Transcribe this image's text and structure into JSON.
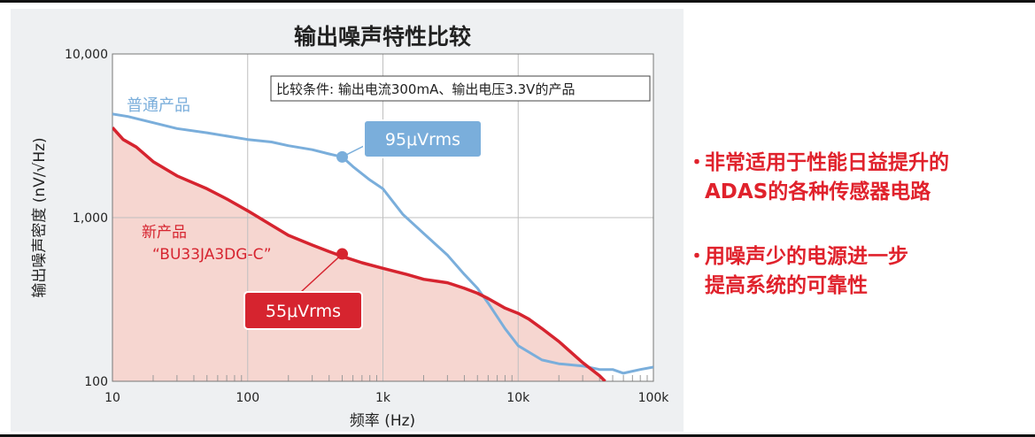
{
  "chart_data": {
    "type": "line",
    "title": "输出噪声特性比较",
    "xlabel": "频率 (Hz)",
    "ylabel": "输出噪声密度 (nV/√Hz)",
    "x_scale": "log",
    "y_scale": "log",
    "xlim": [
      10,
      100000
    ],
    "ylim": [
      100,
      10000
    ],
    "x_ticks": [
      {
        "value": 10,
        "label": "10"
      },
      {
        "value": 100,
        "label": "100"
      },
      {
        "value": 1000,
        "label": "1k"
      },
      {
        "value": 10000,
        "label": "10k"
      },
      {
        "value": 100000,
        "label": "100k"
      }
    ],
    "y_ticks": [
      {
        "value": 100,
        "label": "100"
      },
      {
        "value": 1000,
        "label": "1,000"
      },
      {
        "value": 10000,
        "label": "10,000"
      }
    ],
    "grid": true,
    "annotation_box": "比较条件: 输出电流300mA、输出电压3.3V的产品",
    "series": [
      {
        "name": "普通产品",
        "color": "#7aaedb",
        "x": [
          10,
          13,
          20,
          30,
          50,
          100,
          150,
          200,
          300,
          400,
          500,
          600,
          800,
          1000,
          1400,
          2000,
          3000,
          4000,
          5000,
          6000,
          8000,
          10000,
          15000,
          20000,
          30000,
          40000,
          50000,
          60000,
          80000,
          100000
        ],
        "y": [
          4300,
          4150,
          3800,
          3500,
          3300,
          3000,
          2900,
          2750,
          2600,
          2450,
          2350,
          2050,
          1700,
          1500,
          1050,
          800,
          590,
          450,
          370,
          300,
          210,
          165,
          135,
          128,
          124,
          118,
          118,
          112,
          118,
          122
        ]
      },
      {
        "name": "新产品\n“BU33JA3DG-C”",
        "color": "#d6242f",
        "fill": "#f6d6d0",
        "x": [
          10,
          12,
          15,
          20,
          30,
          50,
          70,
          100,
          150,
          200,
          300,
          400,
          500,
          700,
          1000,
          1500,
          2000,
          3000,
          4000,
          5000,
          6000,
          8000,
          10000,
          12000,
          15000,
          20000,
          30000,
          40000,
          44000
        ],
        "y": [
          3550,
          3000,
          2700,
          2200,
          1800,
          1500,
          1300,
          1100,
          900,
          780,
          680,
          620,
          580,
          530,
          490,
          450,
          420,
          400,
          370,
          345,
          320,
          280,
          260,
          240,
          210,
          175,
          130,
          108,
          100
        ]
      }
    ],
    "callouts": [
      {
        "series": 0,
        "x": 500,
        "y": 2350,
        "label": "95μVrms",
        "color": "#7aaedb"
      },
      {
        "series": 1,
        "x": 500,
        "y": 600,
        "label": "55μVrms",
        "color": "#d6242f"
      }
    ]
  },
  "bullets": [
    {
      "marker": "・",
      "lines": [
        "非常适用于性能日益提升的",
        "ADAS的各种传感器电路"
      ]
    },
    {
      "marker": "・",
      "lines": [
        "用噪声少的电源进一步",
        "提高系统的可靠性"
      ]
    }
  ]
}
